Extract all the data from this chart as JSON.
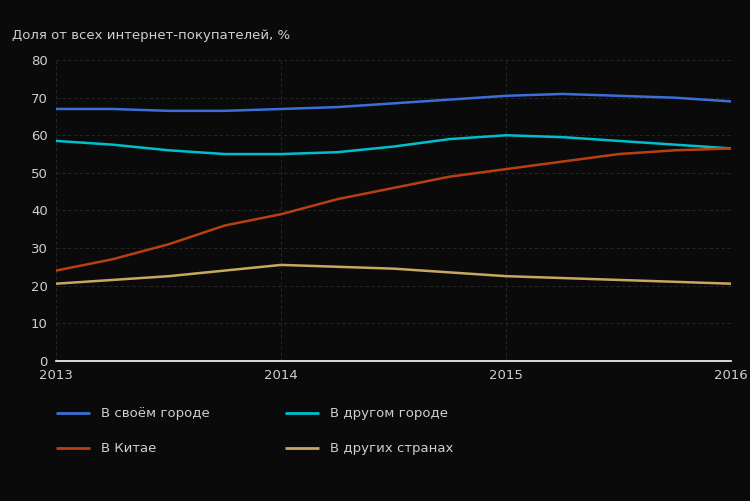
{
  "ylabel": "Доля от всех интернет-покупателей, %",
  "background_color": "#0a0a0a",
  "plot_bg_color": "#0a0a0a",
  "text_color": "#d0cfc8",
  "grid_color": "#2a2a2a",
  "ylim": [
    0,
    80
  ],
  "yticks": [
    0,
    10,
    20,
    30,
    40,
    50,
    60,
    70,
    80
  ],
  "xtick_labels": [
    "2013",
    "2014",
    "2015",
    "2016"
  ],
  "xtick_positions": [
    2013,
    2014,
    2015,
    2016
  ],
  "years": [
    2013.0,
    2013.25,
    2013.5,
    2013.75,
    2014.0,
    2014.25,
    2014.5,
    2014.75,
    2015.0,
    2015.25,
    2015.5,
    2015.75,
    2016.0
  ],
  "series": [
    {
      "label": "В своём городе",
      "color": "#3a6fd8",
      "linewidth": 1.8,
      "values": [
        67,
        67,
        66.5,
        66.5,
        67,
        67.5,
        68.5,
        69.5,
        70.5,
        71,
        70.5,
        70,
        69
      ]
    },
    {
      "label": "В другом городе",
      "color": "#00bfcc",
      "linewidth": 1.8,
      "values": [
        58.5,
        57.5,
        56,
        55,
        55,
        55.5,
        57,
        59,
        60,
        59.5,
        58.5,
        57.5,
        56.5
      ]
    },
    {
      "label": "В Китае",
      "color": "#b84010",
      "linewidth": 1.8,
      "values": [
        24,
        27,
        31,
        36,
        39,
        43,
        46,
        49,
        51,
        53,
        55,
        56,
        56.5
      ]
    },
    {
      "label": "В других странах",
      "color": "#c8a860",
      "linewidth": 1.8,
      "values": [
        20.5,
        21.5,
        22.5,
        24,
        25.5,
        25,
        24.5,
        23.5,
        22.5,
        22,
        21.5,
        21,
        20.5
      ]
    }
  ],
  "legend": [
    {
      "label": "В своём городе",
      "color": "#3a6fd8",
      "row": 0,
      "col": 0
    },
    {
      "label": "В другом городе",
      "color": "#00bfcc",
      "row": 0,
      "col": 1
    },
    {
      "label": "В Китае",
      "color": "#b84010",
      "row": 1,
      "col": 0
    },
    {
      "label": "В других странах",
      "color": "#c8a860",
      "row": 1,
      "col": 1
    }
  ],
  "ylabel_fontsize": 9.5,
  "tick_fontsize": 9.5,
  "legend_fontsize": 9.5
}
